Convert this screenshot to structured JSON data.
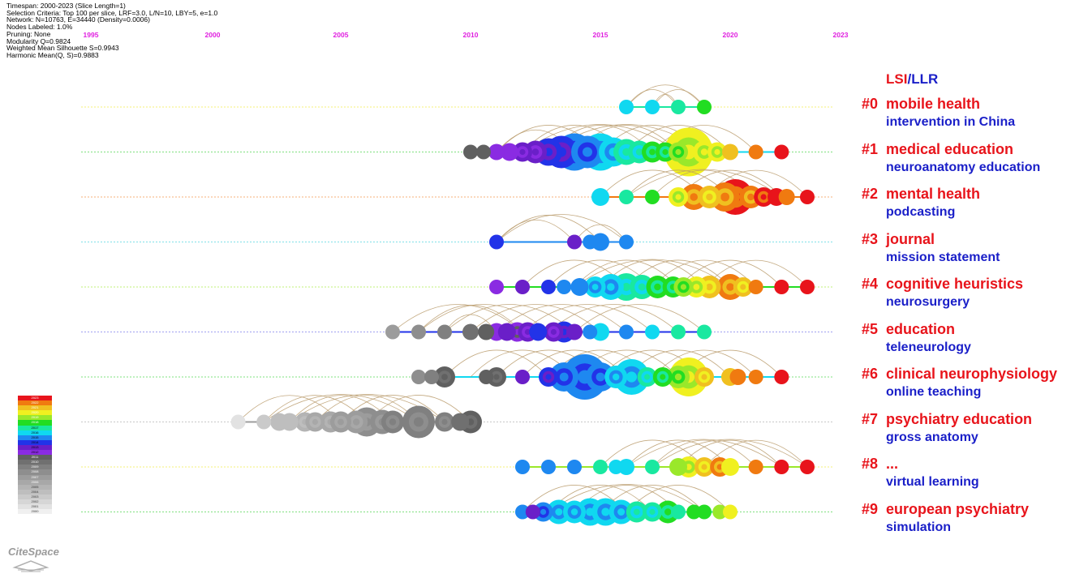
{
  "meta": {
    "lines": [
      "Timespan: 2000-2023 (Slice Length=1)",
      "Selection Criteria: Top 100 per slice, LRF=3.0, L/N=10, LBY=5, e=1.0",
      "Network: N=10763, E=34440 (Density=0.0006)",
      "Nodes Labeled: 1.0%",
      "Pruning: None",
      "Modularity Q=0.9824",
      "Weighted Mean Silhouette S=0.9943",
      "Harmonic Mean(Q, S)=0.9883"
    ]
  },
  "legend": {
    "lsi": "LSI",
    "sep": "/",
    "llr": "LLR"
  },
  "colors": {
    "lsi": "#e8141b",
    "llr": "#1a1fc8",
    "tick": "#e020e0"
  },
  "logo": "CiteSpace",
  "chart_data": {
    "type": "timeline",
    "x_ticks": [
      1995,
      2000,
      2005,
      2010,
      2015,
      2020,
      2023
    ],
    "x_range": [
      1995,
      2023
    ],
    "clusters": [
      {
        "id": "#0",
        "lsi": "mobile health",
        "llr": "intervention in China",
        "line_color": "#f5f07a",
        "nodes": [
          [
            2016,
            9,
            2016
          ],
          [
            2017,
            9,
            2016
          ],
          [
            2018,
            9,
            2017
          ],
          [
            2019,
            9,
            2018
          ]
        ],
        "arcs": [
          [
            2016,
            2018
          ],
          [
            2017,
            2019
          ],
          [
            2016,
            2019
          ],
          [
            2017,
            2018
          ]
        ]
      },
      {
        "id": "#1",
        "lsi": "medical education",
        "llr": "neuroanatomy education",
        "line_color": "#7fe07f",
        "nodes": [
          [
            2010,
            9,
            2011
          ],
          [
            2010.5,
            9,
            2011
          ],
          [
            2011,
            10,
            2012
          ],
          [
            2011.5,
            11,
            2012
          ],
          [
            2012,
            12,
            2013
          ],
          [
            2012.5,
            14,
            2013
          ],
          [
            2013,
            17,
            2014
          ],
          [
            2013.5,
            20,
            2014
          ],
          [
            2014,
            23,
            2015
          ],
          [
            2014.5,
            20,
            2015
          ],
          [
            2015,
            23,
            2016
          ],
          [
            2015.5,
            18,
            2016
          ],
          [
            2016,
            16,
            2017
          ],
          [
            2016.5,
            14,
            2017
          ],
          [
            2017,
            13,
            2018
          ],
          [
            2017.5,
            12,
            2018
          ],
          [
            2018,
            12,
            2019
          ],
          [
            2018.4,
            30,
            2020
          ],
          [
            2019,
            14,
            2020
          ],
          [
            2019.5,
            12,
            2020
          ],
          [
            2020,
            10,
            2021
          ],
          [
            2021,
            9,
            2022
          ],
          [
            2022,
            9,
            2023
          ]
        ],
        "arcs": [
          [
            2011,
            2015
          ],
          [
            2012,
            2016
          ],
          [
            2013,
            2017
          ],
          [
            2014,
            2018
          ],
          [
            2015,
            2019
          ],
          [
            2016,
            2020
          ],
          [
            2012,
            2018
          ],
          [
            2011,
            2014
          ],
          [
            2013,
            2019
          ],
          [
            2017,
            2021
          ]
        ]
      },
      {
        "id": "#2",
        "lsi": "mental health",
        "llr": "podcasting",
        "line_color": "#f4b07a",
        "nodes": [
          [
            2015,
            11,
            2016
          ],
          [
            2016,
            9,
            2017
          ],
          [
            2017,
            9,
            2018
          ],
          [
            2018,
            12,
            2020
          ],
          [
            2018.6,
            16,
            2022
          ],
          [
            2019.2,
            14,
            2021
          ],
          [
            2019.8,
            18,
            2022
          ],
          [
            2020.2,
            22,
            2023
          ],
          [
            2020.8,
            14,
            2022
          ],
          [
            2021.3,
            12,
            2023
          ],
          [
            2021.8,
            11,
            2023
          ],
          [
            2022.2,
            10,
            2022
          ],
          [
            2023,
            9,
            2023
          ]
        ],
        "arcs": [
          [
            2015,
            2019
          ],
          [
            2016,
            2020
          ],
          [
            2017,
            2021
          ],
          [
            2018,
            2022
          ],
          [
            2019,
            2023
          ],
          [
            2016,
            2022
          ]
        ]
      },
      {
        "id": "#3",
        "lsi": "journal",
        "llr": "mission statement",
        "line_color": "#7fe0e8",
        "nodes": [
          [
            2011,
            9,
            2014
          ],
          [
            2014,
            9,
            2013
          ],
          [
            2014.6,
            9,
            2015
          ],
          [
            2015,
            11,
            2015
          ],
          [
            2016,
            9,
            2015
          ]
        ],
        "arcs": [
          [
            2011,
            2014
          ],
          [
            2011,
            2015
          ],
          [
            2014,
            2016
          ],
          [
            2011,
            2016
          ]
        ]
      },
      {
        "id": "#4",
        "lsi": "cognitive heuristics",
        "llr": "neurosurgery",
        "line_color": "#c0f07a",
        "nodes": [
          [
            2011,
            9,
            2012
          ],
          [
            2012,
            9,
            2013
          ],
          [
            2013,
            9,
            2014
          ],
          [
            2013.6,
            9,
            2015
          ],
          [
            2014.2,
            11,
            2015
          ],
          [
            2014.8,
            13,
            2016
          ],
          [
            2015.4,
            16,
            2016
          ],
          [
            2016,
            17,
            2017
          ],
          [
            2016.6,
            15,
            2017
          ],
          [
            2017.2,
            14,
            2018
          ],
          [
            2017.8,
            13,
            2018
          ],
          [
            2018.2,
            12,
            2019
          ],
          [
            2018.7,
            13,
            2020
          ],
          [
            2019.2,
            14,
            2021
          ],
          [
            2020,
            16,
            2022
          ],
          [
            2020.5,
            12,
            2021
          ],
          [
            2021,
            9,
            2022
          ],
          [
            2022,
            9,
            2023
          ],
          [
            2023,
            9,
            2023
          ]
        ],
        "arcs": [
          [
            2012,
            2016
          ],
          [
            2013,
            2017
          ],
          [
            2014,
            2018
          ],
          [
            2015,
            2019
          ],
          [
            2016,
            2020
          ],
          [
            2017,
            2021
          ],
          [
            2018,
            2022
          ],
          [
            2019,
            2023
          ],
          [
            2014,
            2020
          ]
        ]
      },
      {
        "id": "#5",
        "lsi": "education",
        "llr": "teleneurology",
        "line_color": "#a0a0f0",
        "nodes": [
          [
            2007,
            9,
            2007
          ],
          [
            2008,
            9,
            2008
          ],
          [
            2009,
            9,
            2009
          ],
          [
            2010,
            10,
            2010
          ],
          [
            2010.6,
            10,
            2011
          ],
          [
            2011,
            11,
            2012
          ],
          [
            2011.4,
            11,
            2013
          ],
          [
            2011.8,
            12,
            2012
          ],
          [
            2012.2,
            12,
            2013
          ],
          [
            2012.6,
            11,
            2014
          ],
          [
            2013.2,
            12,
            2013
          ],
          [
            2013.6,
            13,
            2014
          ],
          [
            2014,
            10,
            2013
          ],
          [
            2014.6,
            9,
            2015
          ],
          [
            2015,
            11,
            2016
          ],
          [
            2016,
            9,
            2015
          ],
          [
            2017,
            9,
            2016
          ],
          [
            2018,
            9,
            2017
          ],
          [
            2019,
            9,
            2017
          ]
        ],
        "arcs": [
          [
            2007,
            2012
          ],
          [
            2008,
            2013
          ],
          [
            2009,
            2014
          ],
          [
            2010,
            2015
          ],
          [
            2011,
            2016
          ],
          [
            2012,
            2017
          ],
          [
            2013,
            2018
          ],
          [
            2014,
            2019
          ],
          [
            2008,
            2012
          ],
          [
            2009,
            2011
          ]
        ]
      },
      {
        "id": "#6",
        "lsi": "clinical neurophysiology",
        "llr": "online teaching",
        "line_color": "#7fe07f",
        "nodes": [
          [
            2008,
            9,
            2008
          ],
          [
            2008.5,
            9,
            2009
          ],
          [
            2009,
            13,
            2011
          ],
          [
            2010.6,
            9,
            2011
          ],
          [
            2011,
            12,
            2011
          ],
          [
            2012,
            9,
            2013
          ],
          [
            2013,
            12,
            2014
          ],
          [
            2013.6,
            18,
            2015
          ],
          [
            2014.4,
            28,
            2015
          ],
          [
            2015,
            18,
            2015
          ],
          [
            2015.6,
            14,
            2016
          ],
          [
            2016.2,
            22,
            2016
          ],
          [
            2016.8,
            12,
            2017
          ],
          [
            2017.4,
            12,
            2018
          ],
          [
            2018,
            14,
            2019
          ],
          [
            2018.4,
            24,
            2020
          ],
          [
            2019,
            12,
            2021
          ],
          [
            2020,
            11,
            2021
          ],
          [
            2020.3,
            10,
            2022
          ],
          [
            2021,
            9,
            2022
          ],
          [
            2022,
            9,
            2023
          ]
        ],
        "arcs": [
          [
            2009,
            2013
          ],
          [
            2010,
            2014
          ],
          [
            2011,
            2015
          ],
          [
            2012,
            2016
          ],
          [
            2013,
            2017
          ],
          [
            2014,
            2018
          ],
          [
            2015,
            2019
          ],
          [
            2016,
            2020
          ],
          [
            2017,
            2021
          ],
          [
            2018,
            2022
          ]
        ]
      },
      {
        "id": "#7",
        "lsi": "psychiatry education",
        "llr": "gross anatomy",
        "line_color": "#c8c8c8",
        "nodes": [
          [
            2001,
            9,
            2001
          ],
          [
            2002,
            9,
            2003
          ],
          [
            2002.6,
            11,
            2004
          ],
          [
            2003,
            11,
            2004
          ],
          [
            2003.6,
            12,
            2005
          ],
          [
            2004,
            12,
            2006
          ],
          [
            2004.6,
            13,
            2006
          ],
          [
            2005,
            13,
            2007
          ],
          [
            2005.6,
            14,
            2007
          ],
          [
            2006,
            18,
            2008
          ],
          [
            2006.6,
            15,
            2008
          ],
          [
            2007,
            14,
            2009
          ],
          [
            2008,
            20,
            2009
          ],
          [
            2009,
            12,
            2009
          ],
          [
            2009.6,
            11,
            2010
          ],
          [
            2010,
            14,
            2011
          ]
        ],
        "arcs": [
          [
            2001,
            2005
          ],
          [
            2002,
            2006
          ],
          [
            2003,
            2007
          ],
          [
            2004,
            2008
          ],
          [
            2005,
            2009
          ],
          [
            2006,
            2010
          ],
          [
            2003,
            2009
          ],
          [
            2002,
            2008
          ]
        ]
      },
      {
        "id": "#8",
        "lsi": "...",
        "llr": "virtual learning",
        "line_color": "#f5f07a",
        "nodes": [
          [
            2012,
            9,
            2015
          ],
          [
            2013,
            9,
            2015
          ],
          [
            2014,
            9,
            2015
          ],
          [
            2015,
            9,
            2017
          ],
          [
            2015.6,
            9,
            2016
          ],
          [
            2016,
            10,
            2016
          ],
          [
            2017,
            9,
            2017
          ],
          [
            2018,
            11,
            2019
          ],
          [
            2018.4,
            13,
            2020
          ],
          [
            2019,
            12,
            2021
          ],
          [
            2019.6,
            12,
            2022
          ],
          [
            2020,
            11,
            2020
          ],
          [
            2021,
            9,
            2022
          ],
          [
            2022,
            9,
            2023
          ],
          [
            2023,
            9,
            2023
          ]
        ],
        "arcs": [
          [
            2015,
            2019
          ],
          [
            2016,
            2020
          ],
          [
            2017,
            2021
          ],
          [
            2018,
            2022
          ],
          [
            2019,
            2023
          ],
          [
            2016,
            2022
          ],
          [
            2017,
            2023
          ]
        ]
      },
      {
        "id": "#9",
        "lsi": "european psychiatry",
        "llr": "simulation",
        "line_color": "#7fe07f",
        "nodes": [
          [
            2012,
            9,
            2015
          ],
          [
            2012.4,
            9,
            2013
          ],
          [
            2012.8,
            12,
            2015
          ],
          [
            2013.4,
            15,
            2016
          ],
          [
            2014,
            14,
            2016
          ],
          [
            2014.6,
            17,
            2016
          ],
          [
            2015.2,
            17,
            2016
          ],
          [
            2015.8,
            15,
            2016
          ],
          [
            2016.4,
            13,
            2017
          ],
          [
            2017,
            12,
            2017
          ],
          [
            2017.6,
            14,
            2018
          ],
          [
            2018,
            9,
            2017
          ],
          [
            2018.6,
            9,
            2018
          ],
          [
            2019,
            9,
            2018
          ],
          [
            2019.6,
            9,
            2019
          ],
          [
            2020,
            9,
            2020
          ]
        ],
        "arcs": [
          [
            2012,
            2016
          ],
          [
            2013,
            2017
          ],
          [
            2014,
            2018
          ],
          [
            2015,
            2019
          ],
          [
            2016,
            2020
          ],
          [
            2013,
            2019
          ]
        ]
      }
    ],
    "year_colors": {
      "2000": "#f0f0f0",
      "2001": "#e2e2e2",
      "2002": "#d6d6d6",
      "2003": "#cacaca",
      "2004": "#bebebe",
      "2005": "#b4b4b4",
      "2006": "#a8a8a8",
      "2007": "#9c9c9c",
      "2008": "#8e8e8e",
      "2009": "#808080",
      "2010": "#707070",
      "2011": "#606060",
      "2012": "#8a2be2",
      "2013": "#6a1fc8",
      "2014": "#2233e8",
      "2015": "#1e88f0",
      "2016": "#10d8f0",
      "2017": "#19e8a0",
      "2018": "#22dd22",
      "2019": "#9ae82a",
      "2020": "#f0f020",
      "2021": "#f0c020",
      "2022": "#f07a10",
      "2023": "#e8141b"
    },
    "colorbar_years": [
      2023,
      2022,
      2021,
      2020,
      2019,
      2018,
      2017,
      2016,
      2015,
      2014,
      2013,
      2012,
      2011,
      2010,
      2009,
      2008,
      2007,
      2006,
      2005,
      2004,
      2003,
      2002,
      2001,
      2000
    ]
  }
}
